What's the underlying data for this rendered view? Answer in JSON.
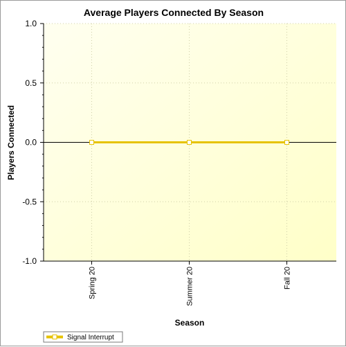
{
  "chart_data": {
    "type": "line",
    "title": "Average Players Connected By Season",
    "xlabel": "Season",
    "ylabel": "Players Connected",
    "categories": [
      "Spring 20",
      "Summer 20",
      "Fall 20"
    ],
    "ylim": [
      -1.0,
      1.0
    ],
    "yticks": [
      "1.0",
      "0.5",
      "0.0",
      "-0.5",
      "-1.0"
    ],
    "ytick_values": [
      1.0,
      0.5,
      0.0,
      -0.5,
      -1.0
    ],
    "grid": true,
    "legend_position": "bottom-left",
    "series": [
      {
        "name": "Signal Interrupt",
        "values": [
          0,
          0,
          0
        ],
        "color": "#e6c200"
      }
    ],
    "background_gradient": [
      "#fffff0",
      "#ffffc8"
    ]
  }
}
